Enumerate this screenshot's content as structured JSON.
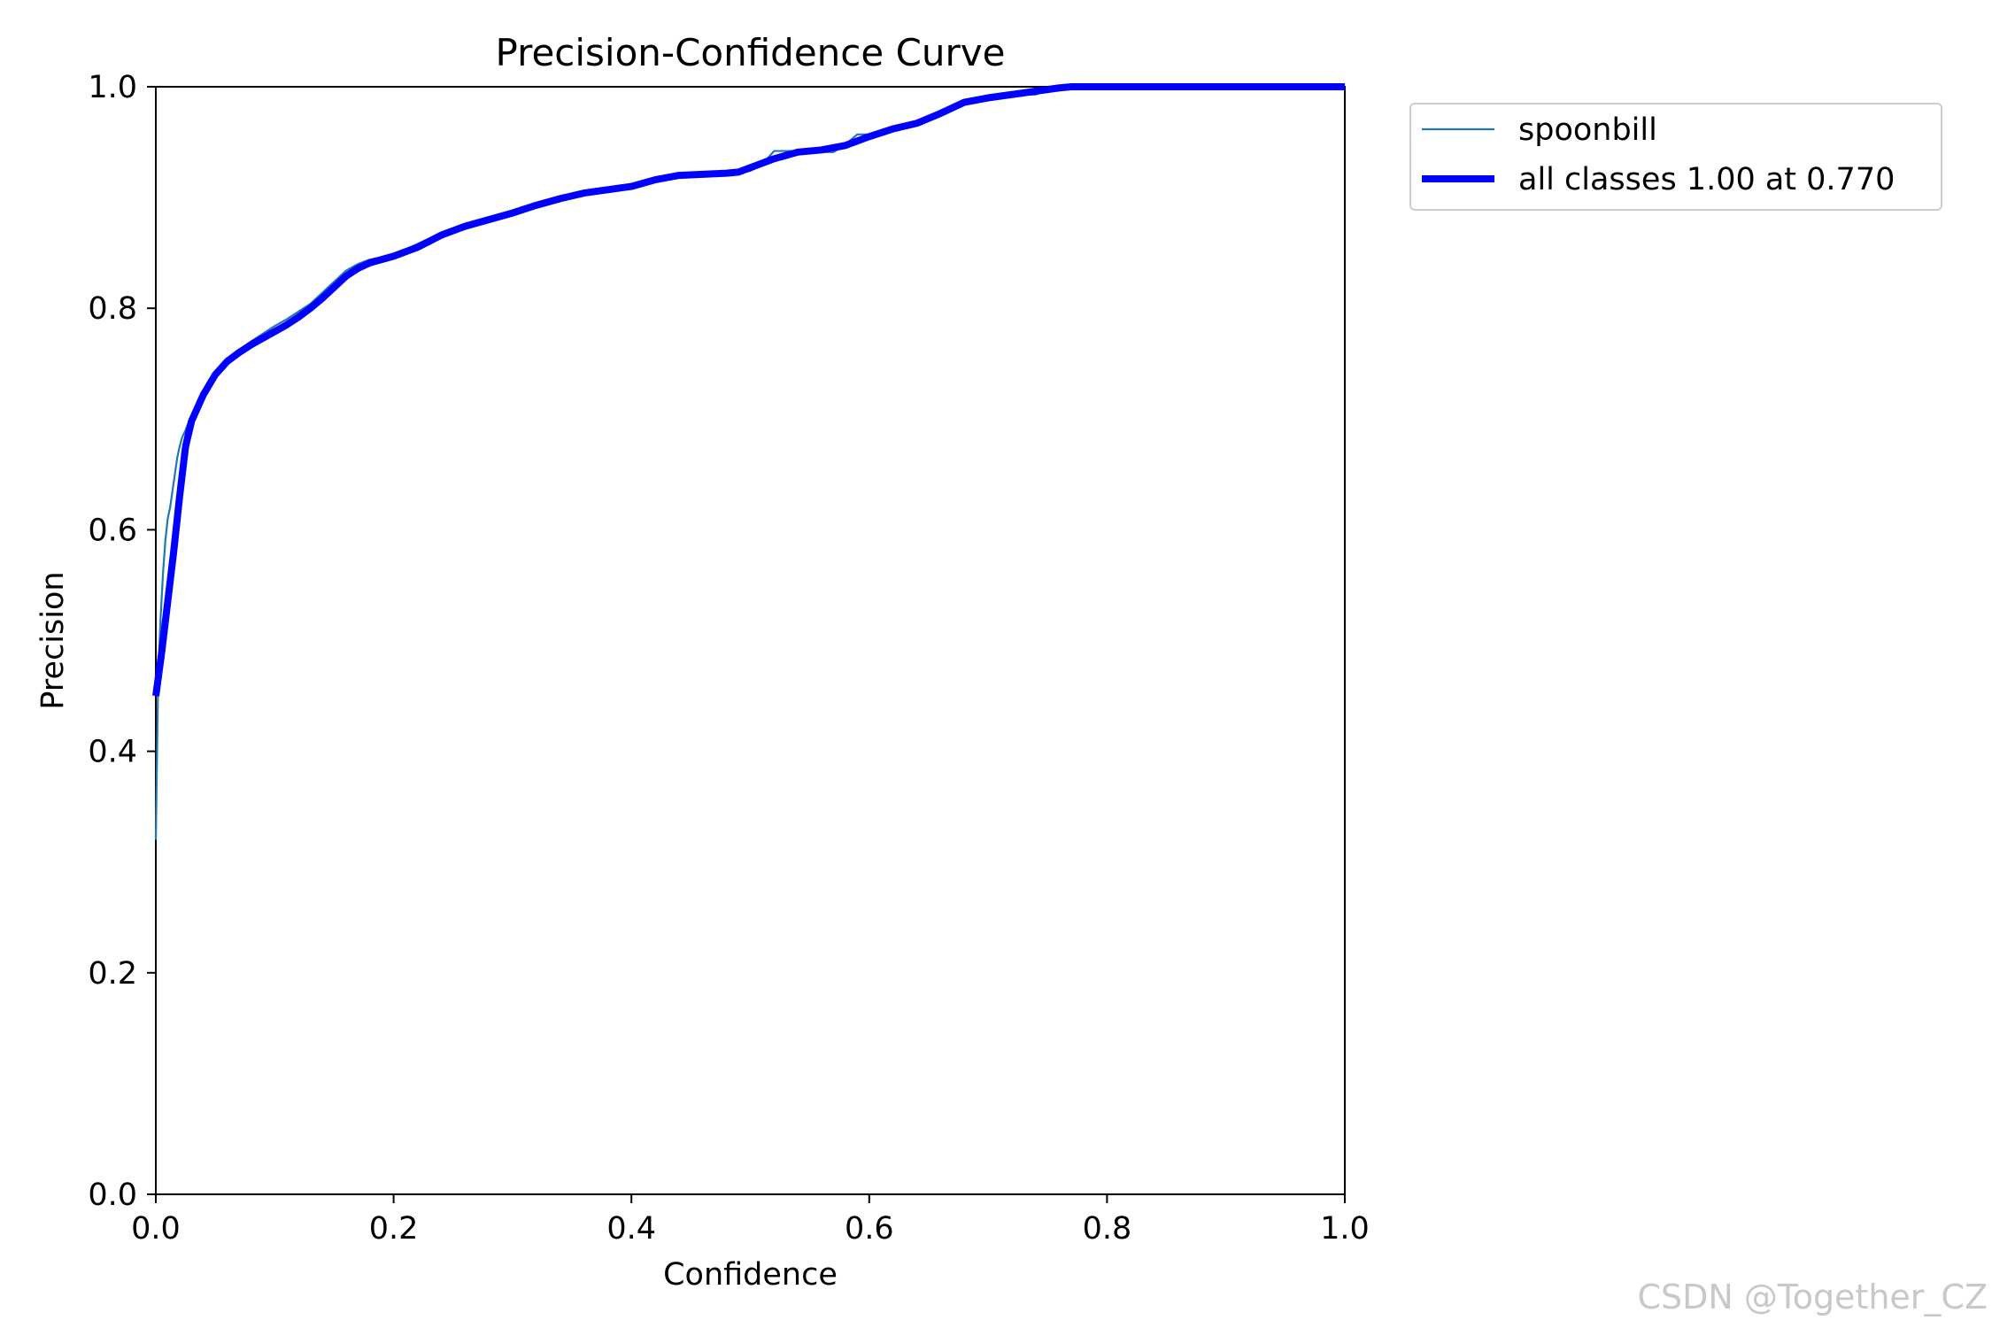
{
  "chart_data": {
    "type": "line",
    "title": "Precision-Confidence Curve",
    "xlabel": "Confidence",
    "ylabel": "Precision",
    "xlim": [
      0.0,
      1.0
    ],
    "ylim": [
      0.0,
      1.0
    ],
    "xticks": [
      "0.0",
      "0.2",
      "0.4",
      "0.6",
      "0.8",
      "1.0"
    ],
    "yticks": [
      "0.0",
      "0.2",
      "0.4",
      "0.6",
      "0.8",
      "1.0"
    ],
    "grid": false,
    "legend_position": "outside top-right",
    "series": [
      {
        "name": "spoonbill",
        "color": "#1f77b4",
        "style": "thin",
        "x": [
          0.0,
          0.002,
          0.004,
          0.006,
          0.008,
          0.01,
          0.012,
          0.014,
          0.016,
          0.018,
          0.02,
          0.022,
          0.025,
          0.028,
          0.032,
          0.036,
          0.04,
          0.045,
          0.05,
          0.055,
          0.06,
          0.065,
          0.07,
          0.08,
          0.09,
          0.1,
          0.11,
          0.12,
          0.13,
          0.14,
          0.15,
          0.16,
          0.17,
          0.18,
          0.19,
          0.2,
          0.22,
          0.24,
          0.26,
          0.28,
          0.3,
          0.32,
          0.34,
          0.36,
          0.38,
          0.4,
          0.42,
          0.44,
          0.46,
          0.48,
          0.5,
          0.51,
          0.52,
          0.53,
          0.54,
          0.55,
          0.56,
          0.57,
          0.58,
          0.59,
          0.6,
          0.62,
          0.64,
          0.66,
          0.68,
          0.7,
          0.72,
          0.74,
          0.75,
          0.76,
          0.77,
          0.8,
          0.9,
          1.0
        ],
        "y": [
          0.32,
          0.47,
          0.52,
          0.56,
          0.59,
          0.61,
          0.62,
          0.635,
          0.65,
          0.665,
          0.675,
          0.683,
          0.69,
          0.698,
          0.708,
          0.716,
          0.724,
          0.733,
          0.742,
          0.748,
          0.754,
          0.758,
          0.762,
          0.77,
          0.777,
          0.784,
          0.79,
          0.797,
          0.804,
          0.814,
          0.824,
          0.834,
          0.84,
          0.844,
          0.846,
          0.848,
          0.858,
          0.868,
          0.874,
          0.88,
          0.886,
          0.893,
          0.9,
          0.904,
          0.908,
          0.911,
          0.916,
          0.92,
          0.922,
          0.922,
          0.924,
          0.93,
          0.942,
          0.942,
          0.942,
          0.942,
          0.941,
          0.941,
          0.948,
          0.957,
          0.957,
          0.963,
          0.968,
          0.977,
          0.988,
          0.991,
          0.993,
          0.993,
          0.997,
          0.998,
          1.0,
          1.0,
          1.0,
          1.0
        ]
      },
      {
        "name": "all classes 1.00 at 0.770",
        "color": "#0000ff",
        "style": "thick",
        "x": [
          0.0,
          0.005,
          0.01,
          0.015,
          0.02,
          0.025,
          0.03,
          0.035,
          0.04,
          0.05,
          0.06,
          0.07,
          0.08,
          0.09,
          0.1,
          0.11,
          0.12,
          0.13,
          0.14,
          0.15,
          0.16,
          0.17,
          0.18,
          0.19,
          0.2,
          0.22,
          0.24,
          0.26,
          0.28,
          0.3,
          0.32,
          0.34,
          0.36,
          0.38,
          0.4,
          0.42,
          0.44,
          0.46,
          0.48,
          0.49,
          0.5,
          0.52,
          0.54,
          0.56,
          0.58,
          0.6,
          0.62,
          0.64,
          0.66,
          0.68,
          0.7,
          0.72,
          0.74,
          0.76,
          0.77,
          0.8,
          0.9,
          1.0
        ],
        "y": [
          0.45,
          0.49,
          0.535,
          0.58,
          0.63,
          0.675,
          0.698,
          0.71,
          0.722,
          0.74,
          0.752,
          0.76,
          0.767,
          0.773,
          0.779,
          0.785,
          0.792,
          0.8,
          0.809,
          0.819,
          0.829,
          0.836,
          0.841,
          0.844,
          0.847,
          0.855,
          0.866,
          0.874,
          0.88,
          0.886,
          0.893,
          0.899,
          0.904,
          0.907,
          0.91,
          0.916,
          0.92,
          0.921,
          0.922,
          0.923,
          0.927,
          0.935,
          0.941,
          0.943,
          0.947,
          0.955,
          0.962,
          0.967,
          0.976,
          0.986,
          0.99,
          0.993,
          0.996,
          0.999,
          1.0,
          1.0,
          1.0,
          1.0
        ]
      }
    ]
  },
  "watermark": "CSDN @Together_CZ"
}
